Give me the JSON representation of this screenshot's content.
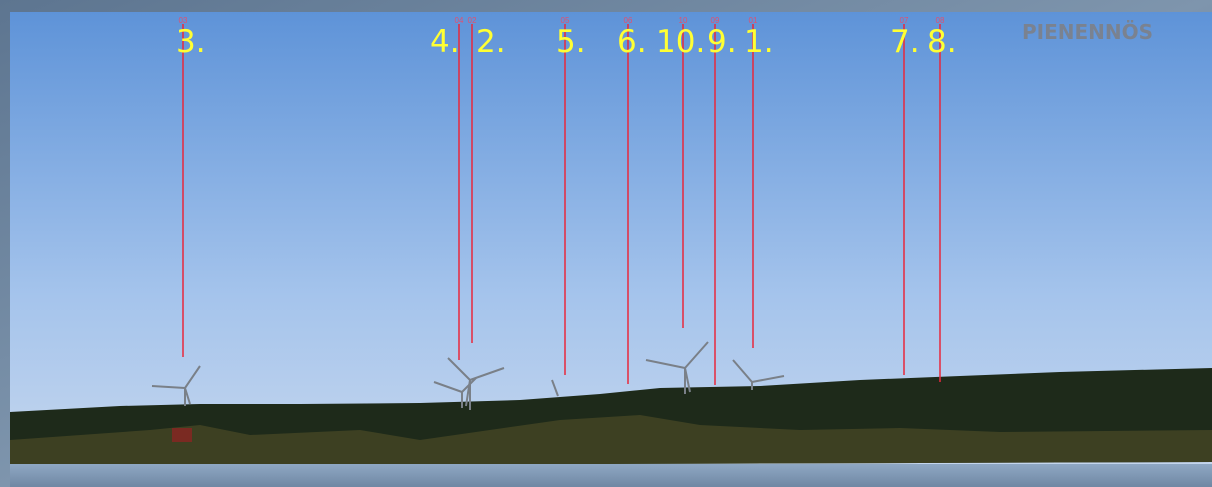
{
  "header": {
    "title": "PIENENNÖS"
  },
  "markers": [
    {
      "label": "3.",
      "code": "03"
    },
    {
      "label": "4.",
      "code": "04"
    },
    {
      "label": "2.",
      "code": "02"
    },
    {
      "label": "5.",
      "code": "05"
    },
    {
      "label": "6.",
      "code": "06"
    },
    {
      "label": "10.",
      "code": "10"
    },
    {
      "label": "9.",
      "code": "09"
    },
    {
      "label": "1.",
      "code": "01"
    },
    {
      "label": "7.",
      "code": "07"
    },
    {
      "label": "8.",
      "code": "08"
    }
  ]
}
